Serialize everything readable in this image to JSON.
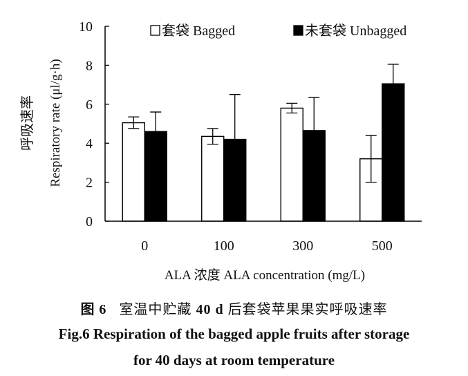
{
  "chart_data": {
    "type": "bar",
    "categories": [
      "0",
      "100",
      "300",
      "500"
    ],
    "series": [
      {
        "name": "套袋  Bagged",
        "color": "#ffffff",
        "values": [
          5.05,
          4.35,
          5.8,
          3.2
        ],
        "errors": [
          0.3,
          0.4,
          0.25,
          1.2
        ]
      },
      {
        "name": "未套袋  Unbagged",
        "color": "#000000",
        "values": [
          4.6,
          4.2,
          4.65,
          7.05
        ],
        "errors": [
          1.0,
          2.3,
          1.7,
          1.0
        ]
      }
    ],
    "xlabel": "ALA 浓度  ALA concentration (mg/L)",
    "ylabel_cn": "呼吸速率",
    "ylabel": "Respiratory rate (μl/g·h)",
    "ylim": [
      0,
      10
    ],
    "yticks": [
      "0",
      "2",
      "4",
      "6",
      "8",
      "10"
    ],
    "grid": false,
    "legend_position": "top"
  },
  "caption": {
    "cn_fig": "图 6",
    "cn_mid": "室温中贮藏",
    "cn_bold": "40 d",
    "cn_tail": "后套袋苹果果实呼吸速率",
    "en_line1": "Fig.6  Respiration of the bagged apple fruits after storage",
    "en_line2": "for 40 days at room temperature"
  }
}
